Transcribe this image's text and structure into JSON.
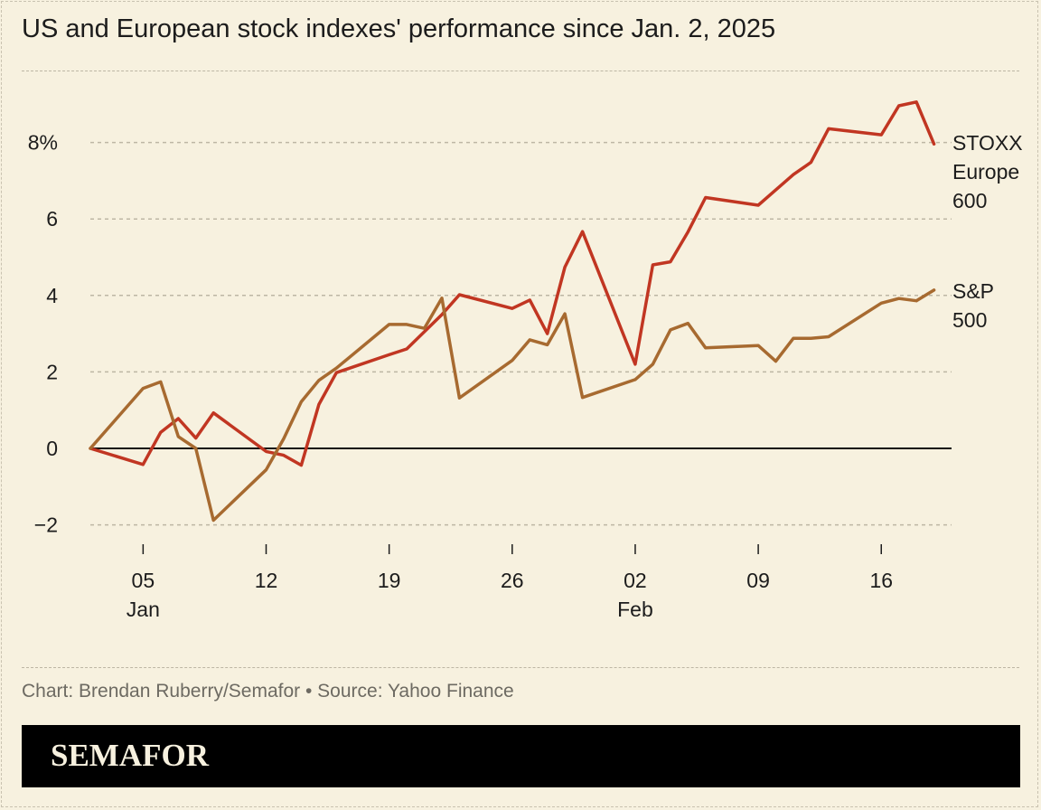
{
  "title": "US and European stock indexes' performance since Jan. 2, 2025",
  "footer": {
    "credit": "Chart: Brendan Ruberry/Semafor • Source: Yahoo Finance"
  },
  "brand": {
    "logo_text": "SEMAFOR"
  },
  "colors": {
    "background": "#f7f1df",
    "stoxx": "#c13622",
    "sp500": "#a76a30",
    "zero_line": "#111111",
    "grid": "#bdb6a4"
  },
  "chart_data": {
    "type": "line",
    "title": "US and European stock indexes' performance since Jan. 2, 2025",
    "ylabel": "",
    "xlabel": "",
    "y_unit": "%",
    "ylim": [
      -2.4,
      9.2
    ],
    "y_ticks": [
      {
        "value": 8,
        "label": "8%"
      },
      {
        "value": 6,
        "label": "6"
      },
      {
        "value": 4,
        "label": "4"
      },
      {
        "value": 2,
        "label": "2"
      },
      {
        "value": 0,
        "label": "0"
      },
      {
        "value": -2,
        "label": "−2"
      }
    ],
    "x_ticks": [
      {
        "date": "2025-01-05",
        "label": "05",
        "month": "Jan"
      },
      {
        "date": "2025-01-12",
        "label": "12",
        "month": ""
      },
      {
        "date": "2025-01-19",
        "label": "19",
        "month": ""
      },
      {
        "date": "2025-01-26",
        "label": "26",
        "month": ""
      },
      {
        "date": "2025-02-02",
        "label": "02",
        "month": "Feb"
      },
      {
        "date": "2025-02-09",
        "label": "09",
        "month": ""
      },
      {
        "date": "2025-02-16",
        "label": "16",
        "month": ""
      }
    ],
    "grid": true,
    "legend": "inline labels at line ends",
    "series": [
      {
        "name": "STOXX Europe 600",
        "label_lines": [
          "STOXX",
          "Europe",
          "600"
        ],
        "color": "#c13622",
        "points": [
          {
            "x": "2025-01-02",
            "y": 0
          },
          {
            "x": "2025-01-05",
            "y": -0.42
          },
          {
            "x": "2025-01-06",
            "y": 0.42
          },
          {
            "x": "2025-01-07",
            "y": 0.78
          },
          {
            "x": "2025-01-08",
            "y": 0.27
          },
          {
            "x": "2025-01-09",
            "y": 0.93
          },
          {
            "x": "2025-01-12",
            "y": -0.08
          },
          {
            "x": "2025-01-13",
            "y": -0.18
          },
          {
            "x": "2025-01-14",
            "y": -0.44
          },
          {
            "x": "2025-01-15",
            "y": 1.15
          },
          {
            "x": "2025-01-16",
            "y": 1.98
          },
          {
            "x": "2025-01-19",
            "y": 2.45
          },
          {
            "x": "2025-01-20",
            "y": 2.6
          },
          {
            "x": "2025-01-22",
            "y": 3.5
          },
          {
            "x": "2025-01-23",
            "y": 4.02
          },
          {
            "x": "2025-01-26",
            "y": 3.66
          },
          {
            "x": "2025-01-27",
            "y": 3.88
          },
          {
            "x": "2025-01-28",
            "y": 3.0
          },
          {
            "x": "2025-01-29",
            "y": 4.74
          },
          {
            "x": "2025-01-30",
            "y": 5.67
          },
          {
            "x": "2025-02-02",
            "y": 2.2
          },
          {
            "x": "2025-02-03",
            "y": 4.8
          },
          {
            "x": "2025-02-04",
            "y": 4.88
          },
          {
            "x": "2025-02-05",
            "y": 5.66
          },
          {
            "x": "2025-02-06",
            "y": 6.56
          },
          {
            "x": "2025-02-09",
            "y": 6.36
          },
          {
            "x": "2025-02-10",
            "y": 6.76
          },
          {
            "x": "2025-02-11",
            "y": 7.16
          },
          {
            "x": "2025-02-12",
            "y": 7.48
          },
          {
            "x": "2025-02-13",
            "y": 8.36
          },
          {
            "x": "2025-02-16",
            "y": 8.2
          },
          {
            "x": "2025-02-17",
            "y": 8.96
          },
          {
            "x": "2025-02-18",
            "y": 9.06
          },
          {
            "x": "2025-02-19",
            "y": 7.96
          }
        ]
      },
      {
        "name": "S&P 500",
        "label_lines": [
          "S&P",
          "500"
        ],
        "color": "#a76a30",
        "points": [
          {
            "x": "2025-01-02",
            "y": 0
          },
          {
            "x": "2025-01-05",
            "y": 1.57
          },
          {
            "x": "2025-01-06",
            "y": 1.74
          },
          {
            "x": "2025-01-07",
            "y": 0.31
          },
          {
            "x": "2025-01-08",
            "y": 0
          },
          {
            "x": "2025-01-09",
            "y": -1.88
          },
          {
            "x": "2025-01-12",
            "y": -0.56
          },
          {
            "x": "2025-01-13",
            "y": 0.25
          },
          {
            "x": "2025-01-14",
            "y": 1.22
          },
          {
            "x": "2025-01-15",
            "y": 1.78
          },
          {
            "x": "2025-01-16",
            "y": 2.1
          },
          {
            "x": "2025-01-19",
            "y": 3.24
          },
          {
            "x": "2025-01-20",
            "y": 3.24
          },
          {
            "x": "2025-01-21",
            "y": 3.14
          },
          {
            "x": "2025-01-22",
            "y": 3.93
          },
          {
            "x": "2025-01-23",
            "y": 1.32
          },
          {
            "x": "2025-01-26",
            "y": 2.3
          },
          {
            "x": "2025-01-27",
            "y": 2.84
          },
          {
            "x": "2025-01-28",
            "y": 2.71
          },
          {
            "x": "2025-01-29",
            "y": 3.52
          },
          {
            "x": "2025-01-30",
            "y": 1.33
          },
          {
            "x": "2025-02-02",
            "y": 1.8
          },
          {
            "x": "2025-02-03",
            "y": 2.2
          },
          {
            "x": "2025-02-04",
            "y": 3.1
          },
          {
            "x": "2025-02-05",
            "y": 3.27
          },
          {
            "x": "2025-02-06",
            "y": 2.63
          },
          {
            "x": "2025-02-09",
            "y": 2.69
          },
          {
            "x": "2025-02-10",
            "y": 2.28
          },
          {
            "x": "2025-02-11",
            "y": 2.88
          },
          {
            "x": "2025-02-12",
            "y": 2.88
          },
          {
            "x": "2025-02-13",
            "y": 2.92
          },
          {
            "x": "2025-02-16",
            "y": 3.8
          },
          {
            "x": "2025-02-17",
            "y": 3.92
          },
          {
            "x": "2025-02-18",
            "y": 3.86
          },
          {
            "x": "2025-02-19",
            "y": 4.14
          }
        ]
      }
    ]
  }
}
